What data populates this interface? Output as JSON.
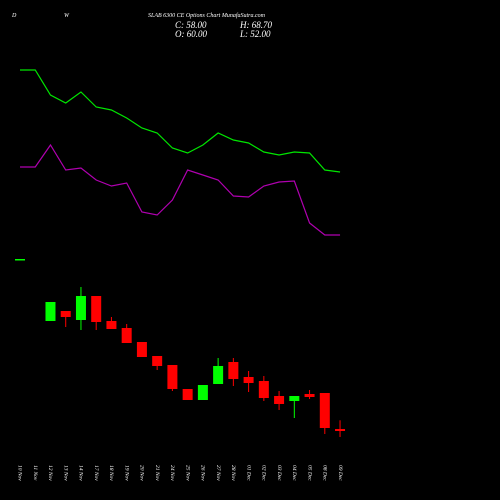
{
  "chart_data": {
    "type": "candlestick",
    "timeframe_left": "D",
    "timeframe_mid": "W",
    "title": "SLAB 6300 CE Options Chart MunafaSutra.com",
    "close_text": "C: 58.00",
    "open_text": "O: 60.00",
    "high_text": "H: 68.70",
    "low_text": "L: 52.00",
    "categories": [
      "10 Nov",
      "11 Nov",
      "12 Nov",
      "13 Nov",
      "14 Nov",
      "17 Nov",
      "18 Nov",
      "19 Nov",
      "20 Nov",
      "21 Nov",
      "24 Nov",
      "25 Nov",
      "26 Nov",
      "27 Nov",
      "28 Nov",
      "01 Dec",
      "02 Dec",
      "03 Dec",
      "04 Dec",
      "05 Dec",
      "08 Dec",
      "09 Dec"
    ],
    "open": [
      229,
      null,
      168,
      178,
      169,
      193,
      168,
      161,
      147,
      133,
      124,
      100,
      89,
      105,
      127,
      112,
      108,
      93,
      88,
      95,
      96,
      60
    ],
    "high": [
      230,
      null,
      187,
      178,
      202,
      193,
      172,
      165,
      147,
      133,
      124,
      100,
      104,
      131,
      131,
      118,
      113,
      98,
      93,
      99,
      96,
      68.7
    ],
    "low": [
      229,
      null,
      168,
      162,
      159,
      159,
      160,
      146,
      132,
      119,
      98,
      89,
      89,
      105,
      103,
      97,
      88,
      79,
      71,
      90,
      55,
      52
    ],
    "close": [
      230,
      null,
      187,
      172,
      193,
      167,
      160,
      146,
      132,
      123,
      100,
      89,
      104,
      123,
      110,
      106,
      91,
      85,
      93,
      92,
      61,
      58
    ],
    "up_color": "#00ff00",
    "down_color": "#ff0000",
    "ylim": [
      -11,
      489
    ],
    "lines": [
      {
        "color": "#00e600",
        "values": [
          419,
          419,
          394,
          386,
          397,
          382,
          379,
          371,
          361,
          356,
          341,
          336,
          344,
          356,
          349,
          346,
          337,
          334,
          337,
          336,
          319,
          317
        ]
      },
      {
        "color": "#b000b0",
        "values": [
          322,
          322,
          344,
          319,
          321,
          309,
          303,
          306,
          277,
          274,
          289,
          319,
          314,
          309,
          293,
          292,
          303,
          307,
          308,
          266,
          254,
          254
        ]
      }
    ]
  }
}
